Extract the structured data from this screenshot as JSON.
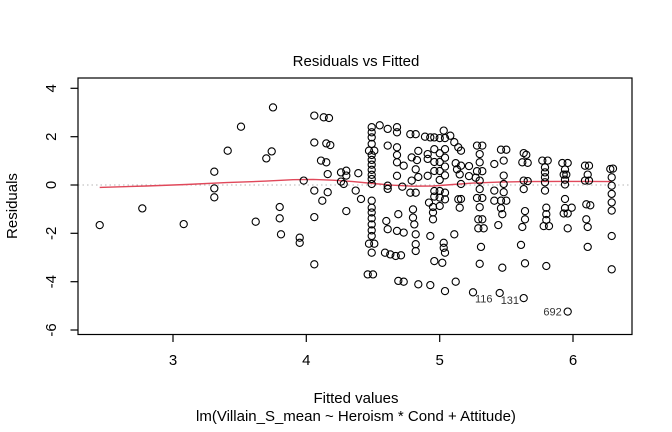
{
  "title": "Residuals vs Fitted",
  "x_axis": {
    "label": "Fitted values",
    "ticks": [
      3,
      4,
      5,
      6
    ]
  },
  "y_axis": {
    "label": "Residuals",
    "ticks": [
      4,
      2,
      0,
      -2,
      -4,
      -6
    ]
  },
  "caption": "lm(Villain_S_mean ~ Heroism * Cond + Attitude)",
  "chart_data": {
    "type": "scatter",
    "title": "Residuals vs Fitted",
    "xlabel": "Fitted values",
    "ylabel": "Residuals",
    "sub_xlabel": "lm(Villain_S_mean ~ Heroism * Cond + Attitude)",
    "xlim": [
      2.2875,
      6.4425
    ],
    "ylim": [
      -6.186,
      4.427
    ],
    "x_ticks": [
      3,
      4,
      5,
      6
    ],
    "y_ticks": [
      4,
      2,
      0,
      -2,
      -4,
      -6
    ],
    "grid": false,
    "zero_line_y": 0,
    "colors": {
      "points": "#000000",
      "smooth_line": "#e0485a",
      "zero_line": "#b4b4b4",
      "axis": "#000000"
    },
    "points": [
      [
        2.45,
        -1.66
      ],
      [
        2.77,
        -0.97
      ],
      [
        3.08,
        -1.62
      ],
      [
        3.31,
        0.55
      ],
      [
        3.31,
        -0.14
      ],
      [
        3.31,
        -0.51
      ],
      [
        3.41,
        1.42
      ],
      [
        3.51,
        2.41
      ],
      [
        3.62,
        -1.52
      ],
      [
        3.7,
        1.1
      ],
      [
        3.74,
        1.39
      ],
      [
        3.75,
        3.21
      ],
      [
        3.8,
        -0.91
      ],
      [
        3.8,
        -1.38
      ],
      [
        3.81,
        -2.04
      ],
      [
        3.95,
        -2.18
      ],
      [
        3.95,
        -2.39
      ],
      [
        3.98,
        0.18
      ],
      [
        4.06,
        2.87
      ],
      [
        4.06,
        1.76
      ],
      [
        4.06,
        -0.23
      ],
      [
        4.06,
        -1.33
      ],
      [
        4.06,
        -3.28
      ],
      [
        4.13,
        2.8
      ],
      [
        4.17,
        2.77
      ],
      [
        4.15,
        1.72
      ],
      [
        4.18,
        1.65
      ],
      [
        4.11,
        1.01
      ],
      [
        4.15,
        0.94
      ],
      [
        4.16,
        0.45
      ],
      [
        4.16,
        -0.3
      ],
      [
        4.12,
        -0.65
      ],
      [
        4.26,
        0.52
      ],
      [
        4.3,
        0.59
      ],
      [
        4.3,
        0.39
      ],
      [
        4.26,
        0.14
      ],
      [
        4.28,
        0.04
      ],
      [
        4.3,
        -1.08
      ],
      [
        4.39,
        0.49
      ],
      [
        4.37,
        -0.23
      ],
      [
        4.41,
        -0.58
      ],
      [
        4.49,
        2.39
      ],
      [
        4.49,
        2.18
      ],
      [
        4.49,
        1.97
      ],
      [
        4.49,
        1.7
      ],
      [
        4.47,
        1.42
      ],
      [
        4.51,
        1.42
      ],
      [
        4.49,
        1.24
      ],
      [
        4.49,
        1.04
      ],
      [
        4.49,
        0.84
      ],
      [
        4.49,
        0.63
      ],
      [
        4.49,
        0.42
      ],
      [
        4.49,
        0.25
      ],
      [
        4.49,
        0.04
      ],
      [
        4.49,
        -0.65
      ],
      [
        4.49,
        -0.94
      ],
      [
        4.49,
        -1.14
      ],
      [
        4.49,
        -1.38
      ],
      [
        4.49,
        -1.63
      ],
      [
        4.49,
        -1.88
      ],
      [
        4.49,
        -2.11
      ],
      [
        4.47,
        -2.43
      ],
      [
        4.51,
        -2.43
      ],
      [
        4.49,
        -2.8
      ],
      [
        4.46,
        -3.7
      ],
      [
        4.5,
        -3.7
      ],
      [
        4.55,
        2.47
      ],
      [
        4.61,
        2.32
      ],
      [
        4.61,
        1.63
      ],
      [
        4.61,
        -0.03
      ],
      [
        4.61,
        -0.16
      ],
      [
        4.6,
        -1.49
      ],
      [
        4.61,
        -1.83
      ],
      [
        4.59,
        -2.8
      ],
      [
        4.63,
        -2.87
      ],
      [
        4.68,
        2.39
      ],
      [
        4.68,
        2.18
      ],
      [
        4.68,
        1.56
      ],
      [
        4.68,
        1.24
      ],
      [
        4.68,
        0.94
      ],
      [
        4.68,
        0.38
      ],
      [
        4.69,
        -1.21
      ],
      [
        4.68,
        -1.9
      ],
      [
        4.67,
        -2.94
      ],
      [
        4.69,
        -3.97
      ],
      [
        4.73,
        0.8
      ],
      [
        4.72,
        -0.07
      ],
      [
        4.73,
        -1.97
      ],
      [
        4.71,
        -2.91
      ],
      [
        4.73,
        -4.0
      ],
      [
        4.78,
        2.1
      ],
      [
        4.82,
        2.1
      ],
      [
        4.84,
        1.41
      ],
      [
        4.79,
        1.14
      ],
      [
        4.83,
        1.03
      ],
      [
        4.82,
        0.65
      ],
      [
        4.84,
        0.33
      ],
      [
        4.79,
        0.18
      ],
      [
        4.78,
        -0.32
      ],
      [
        4.82,
        -0.32
      ],
      [
        4.8,
        -1.01
      ],
      [
        4.8,
        -1.35
      ],
      [
        4.81,
        -1.63
      ],
      [
        4.82,
        -2.04
      ],
      [
        4.82,
        -2.45
      ],
      [
        4.82,
        -2.73
      ],
      [
        4.84,
        -4.11
      ],
      [
        4.89,
        2.0
      ],
      [
        4.93,
        1.97
      ],
      [
        4.96,
        1.97
      ],
      [
        5.0,
        1.94
      ],
      [
        5.04,
        1.94
      ],
      [
        5.03,
        2.25
      ],
      [
        5.08,
        2.04
      ],
      [
        5.11,
        1.77
      ],
      [
        5.14,
        1.56
      ],
      [
        4.96,
        1.48
      ],
      [
        5.04,
        1.48
      ],
      [
        5.0,
        1.31
      ],
      [
        5.04,
        1.13
      ],
      [
        4.96,
        0.95
      ],
      [
        5.0,
        0.95
      ],
      [
        5.04,
        0.76
      ],
      [
        4.96,
        0.58
      ],
      [
        5.0,
        0.58
      ],
      [
        5.04,
        0.4
      ],
      [
        5.0,
        0.21
      ],
      [
        4.91,
        1.28
      ],
      [
        4.91,
        1.08
      ],
      [
        4.91,
        0.38
      ],
      [
        4.96,
        -0.25
      ],
      [
        5.0,
        -0.25
      ],
      [
        5.04,
        -0.32
      ],
      [
        4.96,
        -0.48
      ],
      [
        5.0,
        -0.52
      ],
      [
        5.04,
        -0.59
      ],
      [
        4.92,
        -0.73
      ],
      [
        5.0,
        -0.87
      ],
      [
        4.95,
        -0.91
      ],
      [
        4.95,
        -1.14
      ],
      [
        4.95,
        -1.42
      ],
      [
        4.93,
        -2.11
      ],
      [
        5.03,
        -2.39
      ],
      [
        5.03,
        -2.6
      ],
      [
        5.04,
        -2.8
      ],
      [
        4.96,
        -3.15
      ],
      [
        4.93,
        -4.14
      ],
      [
        5.04,
        -4.39
      ],
      [
        5.12,
        0.9
      ],
      [
        5.13,
        0.65
      ],
      [
        5.15,
        0.44
      ],
      [
        5.14,
        -0.59
      ],
      [
        5.15,
        -0.94
      ],
      [
        5.11,
        -2.04
      ],
      [
        5.02,
        -3.22
      ],
      [
        5.12,
        -4.0
      ],
      [
        5.16,
        1.42
      ],
      [
        5.16,
        0.8
      ],
      [
        5.16,
        0.04
      ],
      [
        5.16,
        -0.58
      ],
      [
        5.22,
        0.78
      ],
      [
        5.22,
        0.37
      ],
      [
        5.27,
        0.3
      ],
      [
        5.28,
        1.63
      ],
      [
        5.32,
        1.63
      ],
      [
        5.3,
        1.28
      ],
      [
        5.3,
        0.94
      ],
      [
        5.28,
        0.57
      ],
      [
        5.32,
        0.57
      ],
      [
        5.3,
        0.18
      ],
      [
        5.3,
        -0.17
      ],
      [
        5.28,
        -0.54
      ],
      [
        5.32,
        -0.54
      ],
      [
        5.3,
        -0.92
      ],
      [
        5.29,
        -1.42
      ],
      [
        5.32,
        -1.42
      ],
      [
        5.29,
        -1.79
      ],
      [
        5.33,
        -1.79
      ],
      [
        5.31,
        -2.56
      ],
      [
        5.3,
        -3.26
      ],
      [
        5.41,
        0.87
      ],
      [
        5.41,
        -0.23
      ],
      [
        5.41,
        -0.65
      ],
      [
        5.46,
        -0.96
      ],
      [
        5.47,
        -1.21
      ],
      [
        5.44,
        -1.66
      ],
      [
        5.47,
        -3.42
      ],
      [
        5.46,
        1.46
      ],
      [
        5.5,
        1.46
      ],
      [
        5.48,
        1.01
      ],
      [
        5.48,
        0.39
      ],
      [
        5.48,
        0.04
      ],
      [
        5.48,
        -0.3
      ],
      [
        5.46,
        -0.65
      ],
      [
        5.5,
        -0.65
      ],
      [
        5.63,
        1.32
      ],
      [
        5.65,
        1.25
      ],
      [
        5.62,
        0.94
      ],
      [
        5.66,
        0.92
      ],
      [
        5.63,
        0.18
      ],
      [
        5.66,
        0.16
      ],
      [
        5.63,
        -0.17
      ],
      [
        5.64,
        -1.08
      ],
      [
        5.64,
        -1.42
      ],
      [
        5.62,
        -1.74
      ],
      [
        5.61,
        -2.48
      ],
      [
        5.64,
        -3.24
      ],
      [
        5.63,
        -4.68
      ],
      [
        5.77,
        1.01
      ],
      [
        5.81,
        1.01
      ],
      [
        5.79,
        0.73
      ],
      [
        5.79,
        0.52
      ],
      [
        5.79,
        0.32
      ],
      [
        5.79,
        0.11
      ],
      [
        5.79,
        -0.23
      ],
      [
        5.8,
        -0.94
      ],
      [
        5.8,
        -1.21
      ],
      [
        5.8,
        -1.45
      ],
      [
        5.78,
        -1.7
      ],
      [
        5.82,
        -1.7
      ],
      [
        5.8,
        -3.35
      ],
      [
        5.92,
        0.91
      ],
      [
        5.96,
        0.91
      ],
      [
        5.94,
        0.64
      ],
      [
        5.93,
        0.43
      ],
      [
        5.95,
        0.43
      ],
      [
        5.94,
        0.22
      ],
      [
        5.94,
        0.02
      ],
      [
        5.94,
        -0.58
      ],
      [
        5.94,
        -0.95
      ],
      [
        5.93,
        -1.18
      ],
      [
        5.96,
        -1.18
      ],
      [
        5.96,
        -1.79
      ],
      [
        5.99,
        -0.94
      ],
      [
        6.09,
        0.8
      ],
      [
        6.12,
        0.8
      ],
      [
        6.11,
        0.43
      ],
      [
        6.09,
        0.18
      ],
      [
        6.12,
        0.18
      ],
      [
        6.1,
        -0.8
      ],
      [
        6.13,
        -0.84
      ],
      [
        6.1,
        -1.42
      ],
      [
        6.11,
        -1.74
      ],
      [
        6.11,
        -2.56
      ],
      [
        6.28,
        0.66
      ],
      [
        6.3,
        0.68
      ],
      [
        6.29,
        0.32
      ],
      [
        6.29,
        -0.03
      ],
      [
        6.29,
        -0.37
      ],
      [
        6.29,
        -0.72
      ],
      [
        6.29,
        -1.06
      ],
      [
        6.29,
        -2.11
      ],
      [
        6.29,
        -3.49
      ]
    ],
    "labeled_points": [
      {
        "label": "116",
        "x": 5.25,
        "y": -4.44
      },
      {
        "label": "131",
        "x": 5.45,
        "y": -4.47
      },
      {
        "label": "692",
        "x": 5.96,
        "y": -5.24
      }
    ],
    "smooth_line": [
      [
        2.45,
        -0.1
      ],
      [
        2.8,
        -0.04
      ],
      [
        3.1,
        0.02
      ],
      [
        3.4,
        0.1
      ],
      [
        3.7,
        0.16
      ],
      [
        3.9,
        0.22
      ],
      [
        4.05,
        0.23
      ],
      [
        4.2,
        0.2
      ],
      [
        4.35,
        0.14
      ],
      [
        4.5,
        0.06
      ],
      [
        4.65,
        -0.01
      ],
      [
        4.8,
        -0.05
      ],
      [
        4.95,
        -0.04
      ],
      [
        5.1,
        0.02
      ],
      [
        5.25,
        0.08
      ],
      [
        5.45,
        0.12
      ],
      [
        5.65,
        0.14
      ],
      [
        5.9,
        0.15
      ],
      [
        6.1,
        0.15
      ],
      [
        6.29,
        0.14
      ]
    ]
  }
}
